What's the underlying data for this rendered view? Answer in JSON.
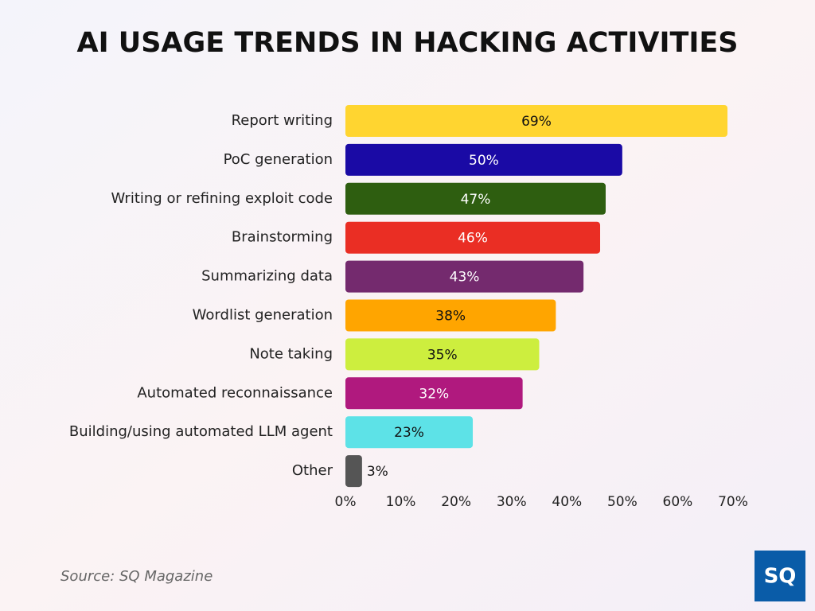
{
  "chart_data": {
    "type": "bar",
    "orientation": "horizontal",
    "title": "AI USAGE TRENDS IN HACKING ACTIVITIES",
    "categories": [
      "Report writing",
      "PoC generation",
      "Writing or refining exploit code",
      "Brainstorming",
      "Summarizing data",
      "Wordlist generation",
      "Note taking",
      "Automated reconnaissance",
      "Building/using automated LLM agent",
      "Other"
    ],
    "values": [
      69,
      50,
      47,
      46,
      43,
      38,
      35,
      32,
      23,
      3
    ],
    "value_labels": [
      "69%",
      "50%",
      "47%",
      "46%",
      "43%",
      "38%",
      "35%",
      "32%",
      "23%",
      "3%"
    ],
    "colors": [
      "#ffd530",
      "#1a0aa5",
      "#2e5e10",
      "#ea2e24",
      "#742a6e",
      "#ffa500",
      "#cdee3e",
      "#b0197e",
      "#5de2e7",
      "#555555"
    ],
    "xlim": [
      0,
      70
    ],
    "xticks": [
      {
        "value": 0,
        "label": "0%"
      },
      {
        "value": 10,
        "label": "10%"
      },
      {
        "value": 20,
        "label": "20%"
      },
      {
        "value": 30,
        "label": "30%"
      },
      {
        "value": 40,
        "label": "40%"
      },
      {
        "value": 50,
        "label": "50%"
      },
      {
        "value": 60,
        "label": "60%"
      },
      {
        "value": 70,
        "label": "70%"
      }
    ],
    "grid": false,
    "source": "Source: SQ Magazine",
    "logo": "SQ"
  }
}
